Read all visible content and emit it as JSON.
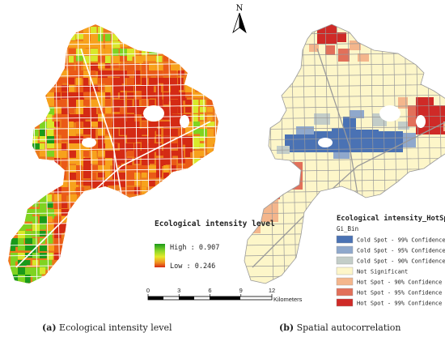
{
  "north_arrow": {
    "label": "N"
  },
  "left_map": {
    "legend": {
      "title": "Ecological intensity level",
      "high_label": "High : 0.907",
      "low_label": "Low : 0.246",
      "colors": [
        "#1a9a1a",
        "#7fd321",
        "#d8e82a",
        "#f7a21c",
        "#ea5a17",
        "#d42a14"
      ]
    },
    "caption_letter": "(a)",
    "caption_text": "Ecological intensity level"
  },
  "right_map": {
    "legend": {
      "title": "Ecological intensity_HotSpots",
      "subtitle": "Gi_Bin",
      "items": [
        {
          "label": "Cold Spot - 99% Confidence",
          "color": "#4a72b4"
        },
        {
          "label": "Cold Spot - 95% Confidence",
          "color": "#8fa8cc"
        },
        {
          "label": "Cold Spot - 90% Confidence",
          "color": "#c3cdc8"
        },
        {
          "label": "Not Significant",
          "color": "#fdf6c9"
        },
        {
          "label": "Hot Spot - 90% Confidence",
          "color": "#f4b68c"
        },
        {
          "label": "Hot Spot - 95% Confidence",
          "color": "#e2705a"
        },
        {
          "label": "Hot Spot - 99% Confidence",
          "color": "#cf2a27"
        }
      ]
    },
    "caption_letter": "(b)",
    "caption_text": "Spatial autocorrelation"
  },
  "scale_bar": {
    "ticks": [
      "0",
      "3",
      "6",
      "9",
      "12"
    ],
    "unit": "Kilometers"
  }
}
